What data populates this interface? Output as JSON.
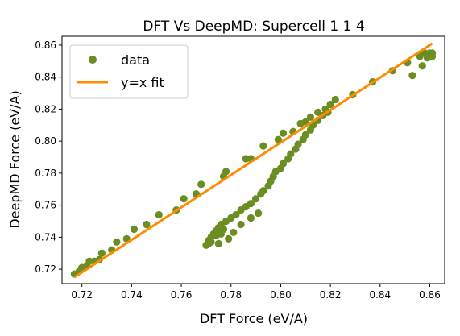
{
  "chart_data": {
    "type": "scatter",
    "title": "DFT Vs DeepMD: Supercell 1 1 4",
    "xlabel": "DFT Force (eV/A)",
    "ylabel": "DeepMD Force (eV/A)",
    "xlim": [
      0.712,
      0.866
    ],
    "ylim": [
      0.711,
      0.8655
    ],
    "xticks": [
      0.72,
      0.74,
      0.76,
      0.78,
      0.8,
      0.82,
      0.84,
      0.86
    ],
    "xtick_labels": [
      "0.72",
      "0.74",
      "0.76",
      "0.78",
      "0.80",
      "0.82",
      "0.84",
      "0.86"
    ],
    "yticks": [
      0.72,
      0.74,
      0.76,
      0.78,
      0.8,
      0.82,
      0.84,
      0.86
    ],
    "ytick_labels": [
      "0.72",
      "0.74",
      "0.76",
      "0.78",
      "0.80",
      "0.82",
      "0.84",
      "0.86"
    ],
    "grid": false,
    "legend": {
      "placement": "top-left",
      "entries": [
        "data",
        "y=x fit"
      ]
    },
    "series": [
      {
        "name": "data",
        "kind": "scatter",
        "color": "#6b8e23",
        "points": [
          [
            0.717,
            0.717
          ],
          [
            0.719,
            0.719
          ],
          [
            0.72,
            0.721
          ],
          [
            0.722,
            0.722
          ],
          [
            0.723,
            0.725
          ],
          [
            0.725,
            0.725
          ],
          [
            0.727,
            0.726
          ],
          [
            0.728,
            0.73
          ],
          [
            0.732,
            0.732
          ],
          [
            0.734,
            0.737
          ],
          [
            0.738,
            0.739
          ],
          [
            0.741,
            0.745
          ],
          [
            0.746,
            0.748
          ],
          [
            0.751,
            0.754
          ],
          [
            0.758,
            0.757
          ],
          [
            0.761,
            0.764
          ],
          [
            0.766,
            0.767
          ],
          [
            0.768,
            0.773
          ],
          [
            0.777,
            0.778
          ],
          [
            0.778,
            0.781
          ],
          [
            0.786,
            0.789
          ],
          [
            0.788,
            0.789
          ],
          [
            0.793,
            0.797
          ],
          [
            0.799,
            0.801
          ],
          [
            0.801,
            0.805
          ],
          [
            0.805,
            0.806
          ],
          [
            0.808,
            0.811
          ],
          [
            0.81,
            0.812
          ],
          [
            0.812,
            0.815
          ],
          [
            0.815,
            0.818
          ],
          [
            0.818,
            0.82
          ],
          [
            0.82,
            0.823
          ],
          [
            0.822,
            0.826
          ],
          [
            0.829,
            0.829
          ],
          [
            0.837,
            0.837
          ],
          [
            0.845,
            0.844
          ],
          [
            0.851,
            0.849
          ],
          [
            0.853,
            0.841
          ],
          [
            0.856,
            0.853
          ],
          [
            0.857,
            0.847
          ],
          [
            0.858,
            0.855
          ],
          [
            0.859,
            0.852
          ],
          [
            0.86,
            0.855
          ],
          [
            0.861,
            0.855
          ],
          [
            0.861,
            0.853
          ],
          [
            0.77,
            0.735
          ],
          [
            0.771,
            0.736
          ],
          [
            0.771,
            0.738
          ],
          [
            0.772,
            0.74
          ],
          [
            0.773,
            0.742
          ],
          [
            0.774,
            0.744
          ],
          [
            0.775,
            0.746
          ],
          [
            0.776,
            0.748
          ],
          [
            0.778,
            0.75
          ],
          [
            0.78,
            0.752
          ],
          [
            0.782,
            0.754
          ],
          [
            0.784,
            0.757
          ],
          [
            0.786,
            0.759
          ],
          [
            0.788,
            0.761
          ],
          [
            0.79,
            0.764
          ],
          [
            0.792,
            0.767
          ],
          [
            0.793,
            0.769
          ],
          [
            0.795,
            0.772
          ],
          [
            0.796,
            0.775
          ],
          [
            0.797,
            0.778
          ],
          [
            0.798,
            0.781
          ],
          [
            0.8,
            0.783
          ],
          [
            0.801,
            0.786
          ],
          [
            0.803,
            0.789
          ],
          [
            0.804,
            0.792
          ],
          [
            0.806,
            0.795
          ],
          [
            0.807,
            0.798
          ],
          [
            0.809,
            0.801
          ],
          [
            0.81,
            0.804
          ],
          [
            0.812,
            0.807
          ],
          [
            0.813,
            0.81
          ],
          [
            0.815,
            0.813
          ],
          [
            0.817,
            0.816
          ],
          [
            0.819,
            0.818
          ],
          [
            0.772,
            0.737
          ],
          [
            0.775,
            0.736
          ],
          [
            0.779,
            0.739
          ],
          [
            0.781,
            0.743
          ],
          [
            0.784,
            0.748
          ],
          [
            0.788,
            0.752
          ],
          [
            0.791,
            0.755
          ],
          [
            0.777,
            0.745
          ],
          [
            0.774,
            0.741
          ],
          [
            0.776,
            0.742
          ]
        ]
      },
      {
        "name": "y=x fit",
        "kind": "line",
        "color": "#ff8c00",
        "points": [
          [
            0.717,
            0.715
          ],
          [
            0.861,
            0.861
          ]
        ]
      }
    ]
  }
}
